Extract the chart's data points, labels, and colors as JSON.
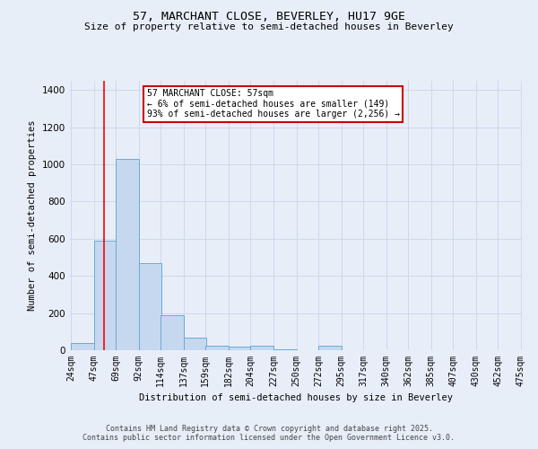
{
  "title_line1": "57, MARCHANT CLOSE, BEVERLEY, HU17 9GE",
  "title_line2": "Size of property relative to semi-detached houses in Beverley",
  "xlabel": "Distribution of semi-detached houses by size in Beverley",
  "ylabel": "Number of semi-detached properties",
  "annotation_title": "57 MARCHANT CLOSE: 57sqm",
  "annotation_line2": "← 6% of semi-detached houses are smaller (149)",
  "annotation_line3": "93% of semi-detached houses are larger (2,256) →",
  "footer_line1": "Contains HM Land Registry data © Crown copyright and database right 2025.",
  "footer_line2": "Contains public sector information licensed under the Open Government Licence v3.0.",
  "property_size": 57,
  "bar_left_edges": [
    24,
    47,
    69,
    92,
    114,
    137,
    159,
    182,
    204,
    227,
    250,
    272,
    295,
    317,
    340,
    362,
    385,
    407,
    430,
    452
  ],
  "bar_heights": [
    40,
    590,
    1030,
    470,
    190,
    70,
    25,
    20,
    25,
    5,
    0,
    25,
    0,
    0,
    0,
    0,
    0,
    0,
    0,
    0
  ],
  "bin_width": 23,
  "tick_labels": [
    "24sqm",
    "47sqm",
    "69sqm",
    "92sqm",
    "114sqm",
    "137sqm",
    "159sqm",
    "182sqm",
    "204sqm",
    "227sqm",
    "250sqm",
    "272sqm",
    "295sqm",
    "317sqm",
    "340sqm",
    "362sqm",
    "385sqm",
    "407sqm",
    "430sqm",
    "452sqm",
    "475sqm"
  ],
  "bar_color": "#c5d8f0",
  "bar_edge_color": "#6aaad4",
  "grid_color": "#cdd8ee",
  "background_color": "#e8eef8",
  "red_line_x": 57,
  "annotation_box_color": "#ffffff",
  "annotation_box_edge": "#cc0000",
  "ylim": [
    0,
    1450
  ],
  "yticks": [
    0,
    200,
    400,
    600,
    800,
    1000,
    1200,
    1400
  ]
}
